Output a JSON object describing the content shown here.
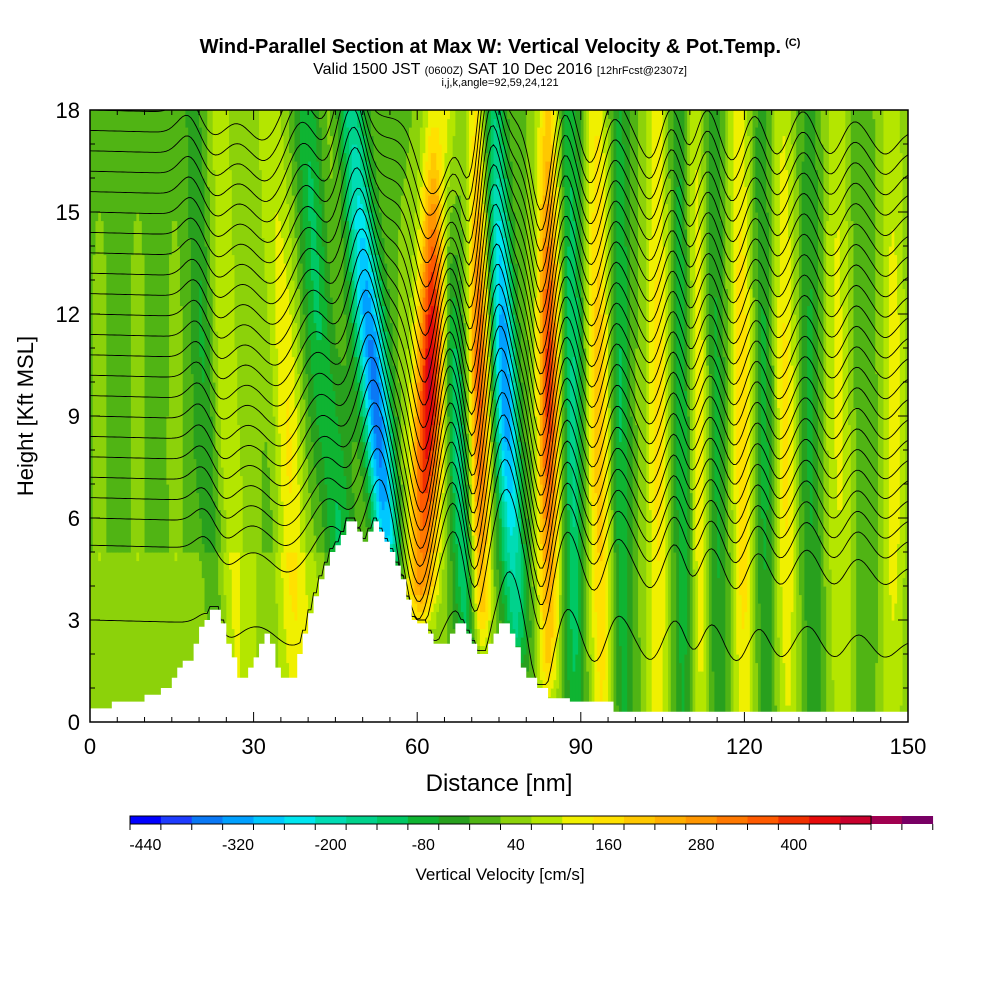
{
  "title": {
    "main": "Wind-Parallel Section at Max W: Vertical Velocity & Pot.Temp.",
    "copyright_mark": "(C)",
    "valid_prefix": "Valid 1500 JST",
    "valid_zulu": "(0600Z)",
    "valid_date": "SAT 10 Dec 2016",
    "forecast": "[12hrFcst@2307z]",
    "section_info": "i,j,k,angle=92,59,24,121"
  },
  "chart_data": {
    "type": "heatmap",
    "xlabel": "Distance [nm]",
    "ylabel": "Height [Kft MSL]",
    "xlim": [
      0,
      150
    ],
    "ylim": [
      0,
      18
    ],
    "x_ticks": [
      "0",
      "30",
      "60",
      "90",
      "120",
      "150"
    ],
    "y_ticks": [
      "0",
      "3",
      "6",
      "9",
      "12",
      "15",
      "18"
    ],
    "colorbar": {
      "label": "Vertical Velocity [cm/s]",
      "min": -460,
      "max": 500,
      "step": 40,
      "tick_labels": [
        "-440",
        "-320",
        "-200",
        "-80",
        "40",
        "160",
        "280",
        "400"
      ],
      "colors": [
        "#0000ff",
        "#1e3cff",
        "#0a78f5",
        "#00a0ff",
        "#00c8ff",
        "#00e6f0",
        "#00dcb4",
        "#00d28c",
        "#00c864",
        "#0fb432",
        "#28a01e",
        "#50b414",
        "#8cd20a",
        "#b4e600",
        "#f0f000",
        "#ffe100",
        "#ffc800",
        "#ffaf00",
        "#ff9600",
        "#ff7800",
        "#ff5a00",
        "#f03000",
        "#e60a0a",
        "#c8002d",
        "#a00050",
        "#780064"
      ]
    },
    "terrain_kft": [
      [
        0,
        0.4
      ],
      [
        4,
        0.4
      ],
      [
        4,
        0.6
      ],
      [
        10,
        0.6
      ],
      [
        10,
        0.8
      ],
      [
        13,
        0.8
      ],
      [
        13,
        1.0
      ],
      [
        15,
        1.0
      ],
      [
        15,
        1.3
      ],
      [
        16,
        1.3
      ],
      [
        16,
        1.6
      ],
      [
        17,
        1.6
      ],
      [
        17,
        1.8
      ],
      [
        19,
        1.8
      ],
      [
        19,
        2.3
      ],
      [
        20,
        2.3
      ],
      [
        20,
        2.8
      ],
      [
        21,
        2.8
      ],
      [
        21,
        3.0
      ],
      [
        22,
        3.0
      ],
      [
        22,
        3.3
      ],
      [
        24,
        3.3
      ],
      [
        24,
        2.9
      ],
      [
        25,
        2.9
      ],
      [
        25,
        2.3
      ],
      [
        26,
        2.3
      ],
      [
        26,
        1.9
      ],
      [
        27,
        1.9
      ],
      [
        27,
        1.3
      ],
      [
        29,
        1.3
      ],
      [
        29,
        1.6
      ],
      [
        30,
        1.6
      ],
      [
        30,
        1.9
      ],
      [
        31,
        1.9
      ],
      [
        31,
        2.3
      ],
      [
        32,
        2.3
      ],
      [
        32,
        2.6
      ],
      [
        33,
        2.6
      ],
      [
        33,
        2.3
      ],
      [
        34,
        2.3
      ],
      [
        34,
        1.6
      ],
      [
        35,
        1.6
      ],
      [
        35,
        1.3
      ],
      [
        38,
        1.3
      ],
      [
        38,
        2.0
      ],
      [
        39,
        2.0
      ],
      [
        39,
        2.6
      ],
      [
        40,
        2.6
      ],
      [
        40,
        3.2
      ],
      [
        41,
        3.2
      ],
      [
        41,
        3.7
      ],
      [
        42,
        3.7
      ],
      [
        42,
        4.2
      ],
      [
        43,
        4.2
      ],
      [
        43,
        4.6
      ],
      [
        44,
        4.6
      ],
      [
        44,
        5.0
      ],
      [
        45,
        5.0
      ],
      [
        45,
        5.2
      ],
      [
        46,
        5.2
      ],
      [
        46,
        5.5
      ],
      [
        47,
        5.5
      ],
      [
        47,
        5.9
      ],
      [
        49,
        5.9
      ],
      [
        49,
        5.6
      ],
      [
        50,
        5.6
      ],
      [
        50,
        5.3
      ],
      [
        51,
        5.3
      ],
      [
        51,
        5.6
      ],
      [
        52,
        5.6
      ],
      [
        52,
        5.9
      ],
      [
        53,
        5.9
      ],
      [
        53,
        5.6
      ],
      [
        54,
        5.6
      ],
      [
        54,
        5.3
      ],
      [
        55,
        5.3
      ],
      [
        55,
        5.0
      ],
      [
        56,
        5.0
      ],
      [
        56,
        4.6
      ],
      [
        57,
        4.6
      ],
      [
        57,
        4.2
      ],
      [
        58,
        4.2
      ],
      [
        58,
        3.6
      ],
      [
        59,
        3.6
      ],
      [
        59,
        3.0
      ],
      [
        60,
        3.0
      ],
      [
        60,
        2.9
      ],
      [
        62,
        2.9
      ],
      [
        62,
        2.6
      ],
      [
        63,
        2.6
      ],
      [
        63,
        2.3
      ],
      [
        66,
        2.3
      ],
      [
        66,
        2.6
      ],
      [
        67,
        2.6
      ],
      [
        67,
        2.9
      ],
      [
        69,
        2.9
      ],
      [
        69,
        2.6
      ],
      [
        70,
        2.6
      ],
      [
        70,
        2.3
      ],
      [
        71,
        2.3
      ],
      [
        71,
        2.0
      ],
      [
        73,
        2.0
      ],
      [
        73,
        2.3
      ],
      [
        74,
        2.3
      ],
      [
        74,
        2.6
      ],
      [
        75,
        2.6
      ],
      [
        75,
        2.9
      ],
      [
        77,
        2.9
      ],
      [
        77,
        2.6
      ],
      [
        78,
        2.6
      ],
      [
        78,
        2.2
      ],
      [
        79,
        2.2
      ],
      [
        79,
        1.6
      ],
      [
        80,
        1.6
      ],
      [
        80,
        1.3
      ],
      [
        82,
        1.3
      ],
      [
        82,
        1.0
      ],
      [
        84,
        1.0
      ],
      [
        84,
        0.7
      ],
      [
        88,
        0.7
      ],
      [
        88,
        0.6
      ],
      [
        96,
        0.6
      ],
      [
        96,
        0.3
      ],
      [
        150,
        0.3
      ]
    ],
    "features": [
      {
        "kind": "updraft",
        "x_base": 27,
        "x_top": 24,
        "width": 2.5,
        "peak_cms": 90
      },
      {
        "kind": "downdraft",
        "x_base": 24,
        "x_top": 19,
        "width": 2.0,
        "peak_cms": -80
      },
      {
        "kind": "updraft",
        "x_base": 39,
        "x_top": 33,
        "width": 3.0,
        "peak_cms": 110
      },
      {
        "kind": "downdraft",
        "x_base": 47,
        "x_top": 40,
        "width": 2.8,
        "peak_cms": -180
      },
      {
        "kind": "updraft",
        "x_base": 44,
        "x_top": 43,
        "width": 3.0,
        "peak_cms": 60
      },
      {
        "kind": "downdraft",
        "x_base": 57,
        "x_top": 48,
        "width": 2.6,
        "peak_cms": -380
      },
      {
        "kind": "updraft",
        "x_base": 60,
        "x_top": 64,
        "width": 2.6,
        "peak_cms": 460
      },
      {
        "kind": "downdraft",
        "x_base": 70,
        "x_top": 64,
        "width": 2.0,
        "peak_cms": -150
      },
      {
        "kind": "updraft",
        "x_base": 72,
        "x_top": 71,
        "width": 1.8,
        "peak_cms": 320
      },
      {
        "kind": "downdraft",
        "x_base": 79,
        "x_top": 74,
        "width": 2.2,
        "peak_cms": -340
      },
      {
        "kind": "updraft",
        "x_base": 84,
        "x_top": 84,
        "width": 2.0,
        "peak_cms": 380
      },
      {
        "kind": "downdraft",
        "x_base": 89,
        "x_top": 88,
        "width": 2.0,
        "peak_cms": -150
      },
      {
        "kind": "updraft",
        "x_base": 94,
        "x_top": 93,
        "width": 2.2,
        "peak_cms": 180
      },
      {
        "kind": "downdraft",
        "x_base": 98,
        "x_top": 97,
        "width": 2.0,
        "peak_cms": -120
      },
      {
        "kind": "updraft",
        "x_base": 104,
        "x_top": 104,
        "width": 2.2,
        "peak_cms": 150
      },
      {
        "kind": "downdraft",
        "x_base": 109,
        "x_top": 108,
        "width": 2.0,
        "peak_cms": -120
      },
      {
        "kind": "updraft",
        "x_base": 112,
        "x_top": 111,
        "width": 2.0,
        "peak_cms": 140
      },
      {
        "kind": "downdraft",
        "x_base": 115,
        "x_top": 114,
        "width": 2.0,
        "peak_cms": -100
      },
      {
        "kind": "updraft",
        "x_base": 120,
        "x_top": 119,
        "width": 2.2,
        "peak_cms": 150
      },
      {
        "kind": "downdraft",
        "x_base": 124,
        "x_top": 123,
        "width": 2.0,
        "peak_cms": -80
      },
      {
        "kind": "updraft",
        "x_base": 128,
        "x_top": 127,
        "width": 2.2,
        "peak_cms": 120
      },
      {
        "kind": "downdraft",
        "x_base": 133,
        "x_top": 132,
        "width": 2.0,
        "peak_cms": -80
      },
      {
        "kind": "updraft",
        "x_base": 138,
        "x_top": 137,
        "width": 2.4,
        "peak_cms": 110
      },
      {
        "kind": "downdraft",
        "x_base": 142,
        "x_top": 141,
        "width": 2.0,
        "peak_cms": -50
      },
      {
        "kind": "updraft",
        "x_base": 147,
        "x_top": 147,
        "width": 2.4,
        "peak_cms": 100
      }
    ],
    "isentrope_base_heights_kft": [
      3.0,
      5.2,
      6.0,
      6.6,
      7.2,
      7.8,
      8.4,
      9.0,
      9.6,
      10.2,
      10.8,
      11.4,
      12.0,
      12.6,
      13.2,
      13.8,
      14.4,
      15.0,
      15.6,
      16.2,
      16.8,
      17.4,
      18.0
    ]
  }
}
